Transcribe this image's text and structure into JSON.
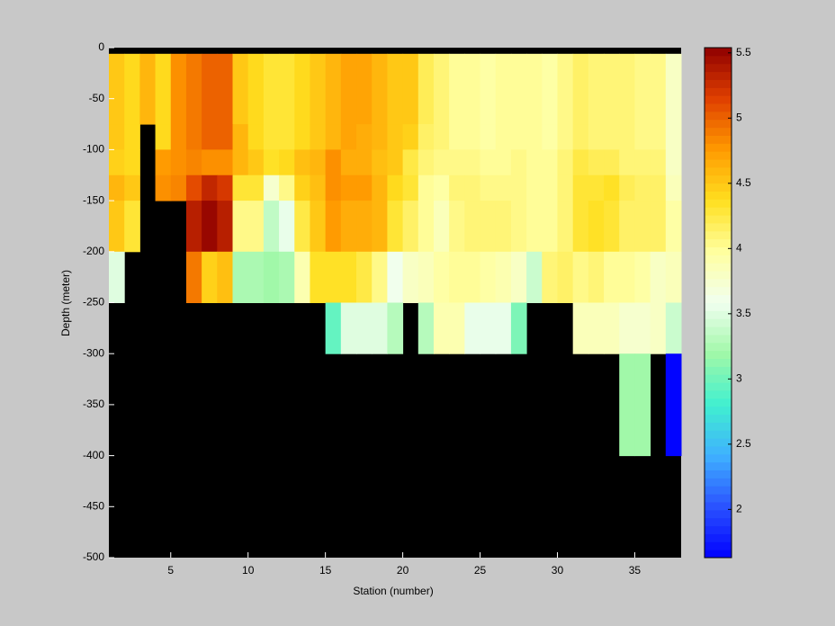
{
  "chart_data": {
    "type": "heatmap",
    "xlabel": "Station (number)",
    "ylabel": "Depth (meter)",
    "x_edges": [
      1,
      2,
      3,
      4,
      5,
      6,
      7,
      8,
      9,
      10,
      11,
      12,
      13,
      14,
      15,
      16,
      17,
      18,
      19,
      20,
      21,
      22,
      23,
      24,
      25,
      26,
      27,
      28,
      29,
      30,
      31,
      32,
      33,
      34,
      35,
      36,
      37,
      38
    ],
    "y_edges": [
      -6,
      -75,
      -100,
      -125,
      -150,
      -200,
      -250,
      -300,
      -400
    ],
    "z": [
      [
        4.5,
        4.4,
        4.6,
        4.4,
        4.8,
        4.9,
        5.0,
        5.0,
        4.5,
        4.4,
        4.3,
        4.3,
        4.4,
        4.5,
        4.6,
        4.7,
        4.7,
        4.6,
        4.5,
        4.5,
        4.2,
        4.1,
        4.0,
        4.0,
        3.95,
        4.0,
        4.0,
        4.0,
        3.95,
        4.05,
        4.15,
        4.1,
        4.1,
        4.1,
        4.05,
        4.05,
        3.8
      ],
      [
        4.5,
        4.4,
        null,
        4.4,
        4.8,
        4.9,
        5.0,
        5.0,
        4.6,
        4.4,
        4.3,
        4.3,
        4.4,
        4.5,
        4.6,
        4.7,
        4.65,
        4.6,
        4.5,
        4.45,
        4.15,
        4.1,
        4.0,
        4.0,
        3.95,
        4.0,
        4.0,
        4.0,
        3.95,
        4.05,
        4.15,
        4.1,
        4.1,
        4.1,
        4.05,
        4.05,
        3.8
      ],
      [
        4.45,
        4.4,
        null,
        4.75,
        4.8,
        4.85,
        4.8,
        4.8,
        4.6,
        4.5,
        4.35,
        4.4,
        4.55,
        4.6,
        4.8,
        4.65,
        4.65,
        4.55,
        4.5,
        4.25,
        4.1,
        4.05,
        4.05,
        4.05,
        4.0,
        4.0,
        4.05,
        4.0,
        4.0,
        4.1,
        4.25,
        4.2,
        4.2,
        4.1,
        4.1,
        4.1,
        3.8
      ],
      [
        4.6,
        4.5,
        null,
        4.8,
        4.85,
        5.1,
        5.3,
        5.2,
        4.3,
        4.3,
        3.75,
        4.05,
        4.45,
        4.55,
        4.8,
        4.75,
        4.75,
        4.6,
        4.4,
        4.3,
        4.0,
        3.95,
        4.1,
        4.1,
        4.05,
        4.05,
        4.05,
        4.0,
        4.0,
        4.1,
        4.3,
        4.3,
        4.35,
        4.2,
        4.15,
        4.15,
        3.85
      ],
      [
        4.5,
        4.3,
        null,
        null,
        null,
        5.35,
        5.5,
        5.35,
        4.05,
        4.05,
        3.35,
        3.55,
        4.25,
        4.5,
        4.75,
        4.65,
        4.65,
        4.6,
        4.3,
        4.15,
        4.0,
        3.85,
        4.05,
        4.1,
        4.1,
        4.1,
        4.05,
        4.0,
        4.0,
        4.1,
        4.3,
        4.35,
        4.3,
        4.15,
        4.15,
        4.15,
        3.95
      ],
      [
        3.5,
        null,
        null,
        null,
        null,
        4.9,
        4.45,
        4.55,
        3.25,
        3.25,
        3.2,
        3.25,
        3.9,
        4.35,
        4.35,
        4.35,
        4.25,
        4.05,
        3.6,
        3.8,
        3.85,
        3.95,
        4.0,
        4.0,
        3.95,
        3.9,
        3.8,
        3.4,
        4.1,
        4.15,
        4.05,
        4.1,
        4.0,
        4.0,
        3.95,
        3.8,
        3.85
      ],
      [
        null,
        null,
        null,
        null,
        null,
        null,
        null,
        null,
        null,
        null,
        null,
        null,
        null,
        null,
        2.95,
        3.5,
        3.5,
        3.5,
        3.3,
        null,
        3.3,
        3.9,
        3.9,
        3.55,
        3.55,
        3.55,
        3.05,
        null,
        null,
        null,
        3.85,
        3.85,
        3.85,
        3.75,
        3.75,
        3.8,
        3.4
      ],
      [
        null,
        null,
        null,
        null,
        null,
        null,
        null,
        null,
        null,
        null,
        null,
        null,
        null,
        null,
        null,
        null,
        null,
        null,
        null,
        null,
        null,
        null,
        null,
        null,
        null,
        null,
        null,
        null,
        null,
        null,
        null,
        null,
        null,
        3.2,
        3.2,
        null,
        1.65
      ]
    ],
    "xlim": [
      1,
      38
    ],
    "ylim": [
      -500,
      0
    ],
    "xticks": [
      5,
      10,
      15,
      20,
      25,
      30,
      35
    ],
    "yticks": [
      0,
      -50,
      -100,
      -150,
      -200,
      -250,
      -300,
      -350,
      -400,
      -450,
      -500
    ],
    "clim": [
      1.63,
      5.54
    ],
    "cticks": [
      2,
      2.5,
      3,
      3.5,
      4,
      4.5,
      5,
      5.5
    ],
    "colormap": [
      "#0000ff",
      "#2a52ff",
      "#3fb0ff",
      "#40f0d0",
      "#a0f8a8",
      "#f0fff0",
      "#ffffa0",
      "#ffe020",
      "#ff9a00",
      "#e04000",
      "#900000"
    ]
  }
}
